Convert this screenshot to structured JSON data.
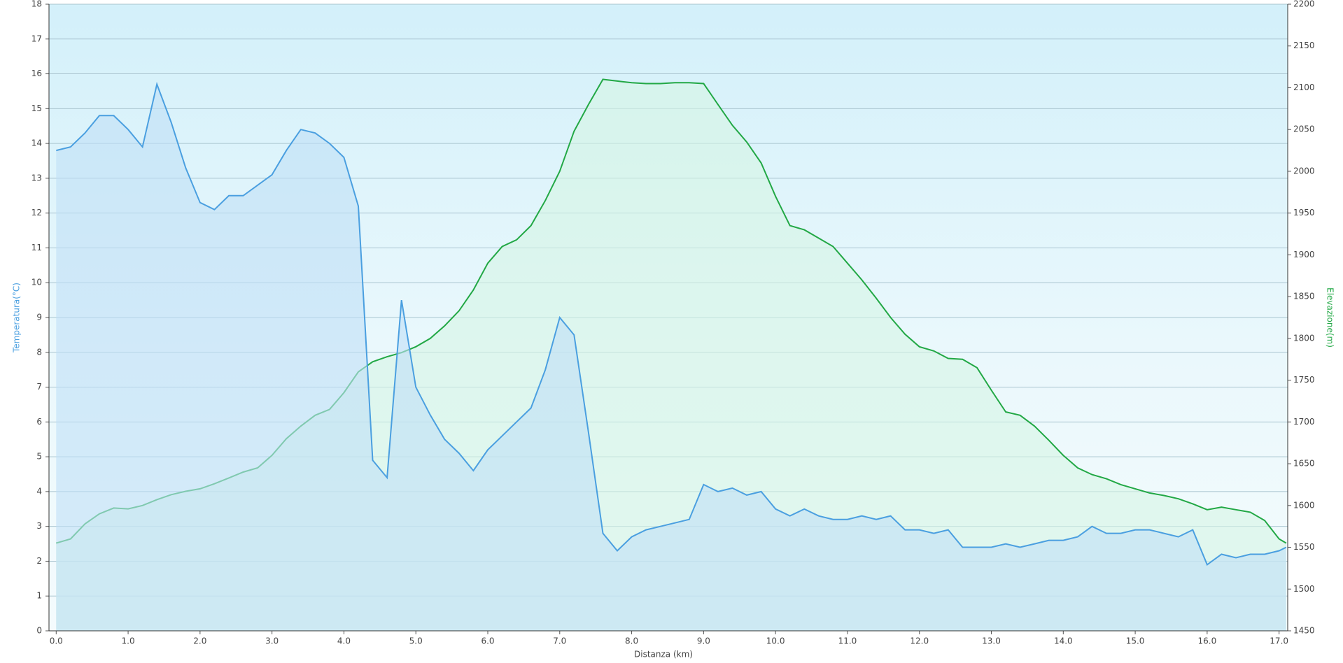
{
  "chart_data": {
    "type": "line",
    "xlabel": "Distanza  (km)",
    "ylabel": "Temperatura(°C)",
    "y2label": "Elevazione(m)",
    "x": [
      0.0,
      0.2,
      0.4,
      0.6,
      0.8,
      1.0,
      1.2,
      1.4,
      1.6,
      1.8,
      2.0,
      2.2,
      2.4,
      2.6,
      2.8,
      3.0,
      3.2,
      3.4,
      3.6,
      3.8,
      4.0,
      4.2,
      4.4,
      4.6,
      4.8,
      5.0,
      5.2,
      5.4,
      5.6,
      5.8,
      6.0,
      6.2,
      6.4,
      6.6,
      6.8,
      7.0,
      7.2,
      7.4,
      7.6,
      7.8,
      8.0,
      8.2,
      8.4,
      8.6,
      8.8,
      9.0,
      9.2,
      9.4,
      9.6,
      9.8,
      10.0,
      10.2,
      10.4,
      10.6,
      10.8,
      11.0,
      11.2,
      11.4,
      11.6,
      11.8,
      12.0,
      12.2,
      12.4,
      12.6,
      12.8,
      13.0,
      13.2,
      13.4,
      13.6,
      13.8,
      14.0,
      14.2,
      14.4,
      14.6,
      14.8,
      15.0,
      15.2,
      15.4,
      15.6,
      15.8,
      16.0,
      16.2,
      16.4,
      16.6,
      16.8,
      17.0,
      17.1
    ],
    "series": [
      {
        "name": "Temperatura",
        "color": "#4a9fe0",
        "fill": "#bfe0f7",
        "values": [
          13.8,
          13.9,
          14.3,
          14.8,
          14.8,
          14.4,
          13.9,
          15.7,
          14.6,
          13.3,
          12.3,
          12.1,
          12.5,
          12.5,
          12.8,
          13.1,
          13.8,
          14.4,
          14.3,
          14.0,
          13.6,
          12.2,
          4.9,
          4.4,
          9.5,
          7.0,
          6.2,
          5.5,
          5.1,
          4.6,
          5.2,
          5.6,
          6.0,
          6.4,
          7.5,
          9.0,
          8.5,
          5.7,
          2.8,
          2.3,
          2.7,
          2.9,
          3.0,
          3.1,
          3.2,
          4.2,
          4.0,
          4.1,
          3.9,
          4.0,
          3.5,
          3.3,
          3.5,
          3.3,
          3.2,
          3.2,
          3.3,
          3.2,
          3.3,
          2.9,
          2.9,
          2.8,
          2.9,
          2.4,
          2.4,
          2.4,
          2.5,
          2.4,
          2.5,
          2.6,
          2.6,
          2.7,
          3.0,
          2.8,
          2.8,
          2.9,
          2.9,
          2.8,
          2.7,
          2.9,
          1.9,
          2.2,
          2.1,
          2.2,
          2.2,
          2.3,
          2.4
        ]
      },
      {
        "name": "Elevazione",
        "color": "#22a845",
        "fill": "#d6f5e4",
        "axis": "y2",
        "values": [
          1555,
          1560,
          1578,
          1590,
          1597,
          1596,
          1600,
          1607,
          1613,
          1617,
          1620,
          1626,
          1633,
          1640,
          1645,
          1660,
          1680,
          1695,
          1708,
          1715,
          1735,
          1760,
          1772,
          1778,
          1783,
          1790,
          1800,
          1815,
          1833,
          1858,
          1890,
          1910,
          1918,
          1935,
          1965,
          2000,
          2048,
          2080,
          2110,
          2108,
          2106,
          2105,
          2105,
          2106,
          2106,
          2105,
          2080,
          2055,
          2035,
          2010,
          1970,
          1935,
          1930,
          1920,
          1910,
          1890,
          1870,
          1848,
          1825,
          1805,
          1790,
          1785,
          1776,
          1775,
          1765,
          1738,
          1712,
          1708,
          1695,
          1678,
          1660,
          1645,
          1637,
          1632,
          1625,
          1620,
          1615,
          1612,
          1608,
          1602,
          1595,
          1598,
          1595,
          1592,
          1582,
          1560,
          1555
        ]
      }
    ],
    "xlim": [
      -0.1,
      17.12
    ],
    "xticks": [
      {
        "value": 0,
        "label": "0.0"
      },
      {
        "value": 1,
        "label": "1.0"
      },
      {
        "value": 2,
        "label": "2.0"
      },
      {
        "value": 3,
        "label": "3.0"
      },
      {
        "value": 4,
        "label": "4.0"
      },
      {
        "value": 5,
        "label": "5.0"
      },
      {
        "value": 6,
        "label": "6.0"
      },
      {
        "value": 7,
        "label": "7.0"
      },
      {
        "value": 8,
        "label": "8.0"
      },
      {
        "value": 9,
        "label": "9.0"
      },
      {
        "value": 10,
        "label": "10.0"
      },
      {
        "value": 11,
        "label": "11.0"
      },
      {
        "value": 12,
        "label": "12.0"
      },
      {
        "value": 13,
        "label": "13.0"
      },
      {
        "value": 14,
        "label": "14.0"
      },
      {
        "value": 15,
        "label": "15.0"
      },
      {
        "value": 16,
        "label": "16.0"
      },
      {
        "value": 17,
        "label": "17.0"
      }
    ],
    "ylim": [
      0,
      18
    ],
    "yticks": [
      0,
      1,
      2,
      3,
      4,
      5,
      6,
      7,
      8,
      9,
      10,
      11,
      12,
      13,
      14,
      15,
      16,
      17,
      18
    ],
    "y2lim": [
      1450,
      2200
    ],
    "y2ticks": [
      1450,
      1500,
      1550,
      1600,
      1650,
      1700,
      1750,
      1800,
      1850,
      1900,
      1950,
      2000,
      2050,
      2100,
      2150,
      2200
    ],
    "grid": true
  }
}
